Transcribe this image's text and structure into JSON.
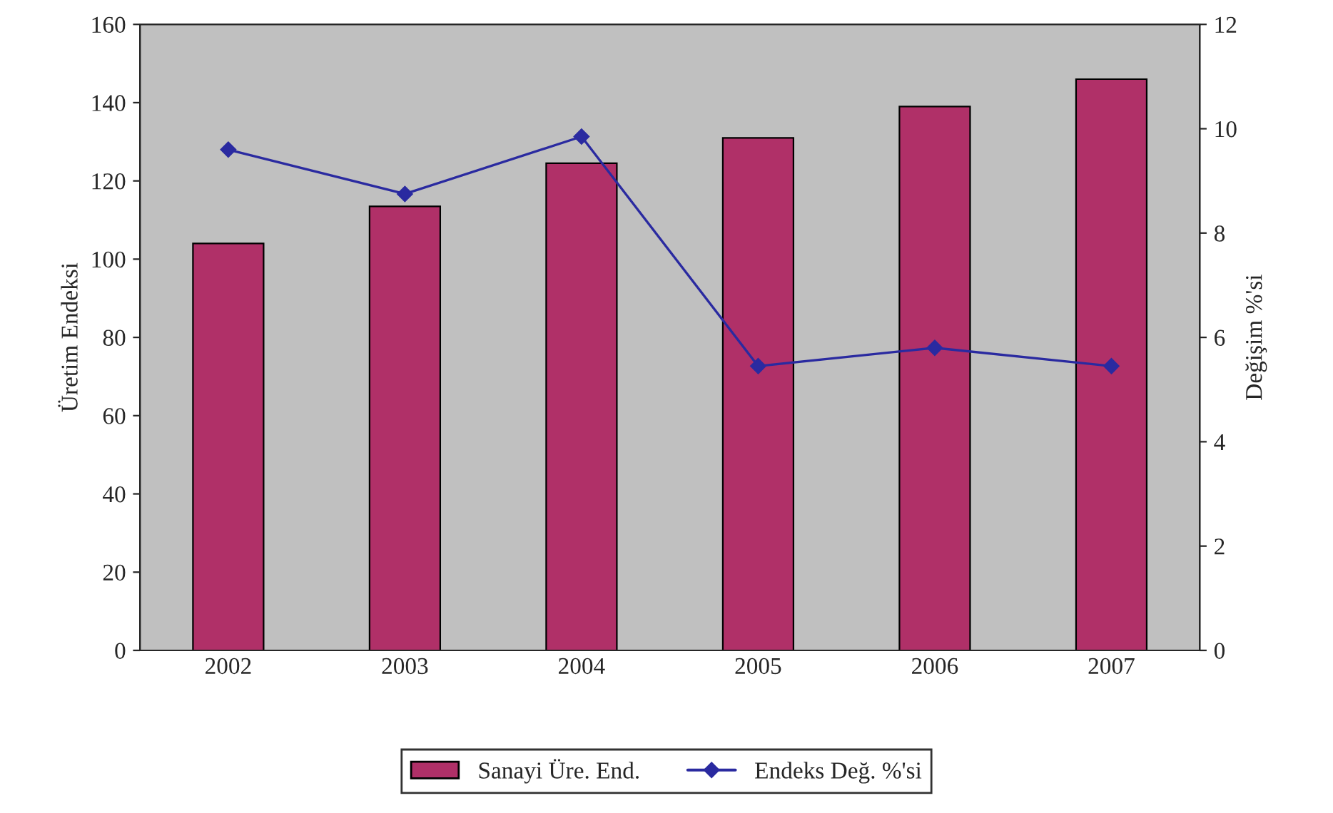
{
  "chart_data": {
    "type": "bar",
    "categories": [
      "2002",
      "2003",
      "2004",
      "2005",
      "2006",
      "2007"
    ],
    "ylabel": "Üretim Endeksi",
    "y2label": "Değişim %'si",
    "series": [
      {
        "name": "Sanayi Üre. End.",
        "color": "#b03068",
        "values": [
          104,
          113.5,
          124.5,
          131,
          139,
          146
        ]
      },
      {
        "name": "Endeks Değ. %'si",
        "type": "line",
        "axis": "y2",
        "color": "#2a2aa0",
        "marker": "diamond",
        "values": [
          9.6,
          8.75,
          9.85,
          5.45,
          5.8,
          5.45
        ]
      }
    ],
    "ylim": [
      0,
      160
    ],
    "yticks": [
      0,
      20,
      40,
      60,
      80,
      100,
      120,
      140,
      160
    ],
    "y2lim": [
      0,
      12
    ],
    "y2ticks": [
      0,
      2,
      4,
      6,
      8,
      10,
      12
    ],
    "grid": false,
    "legend": "bottom"
  }
}
